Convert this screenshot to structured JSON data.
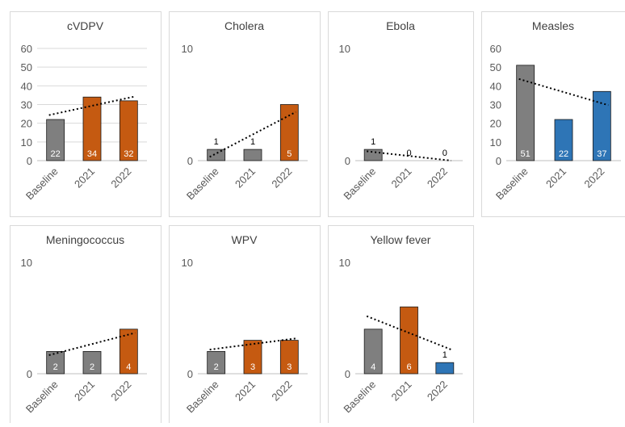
{
  "colors": {
    "baseline": "#7f7f7f",
    "increase": "#c55a11",
    "decrease": "#2e75b6"
  },
  "chart_data": [
    {
      "type": "bar",
      "title": "cVDPV",
      "categories": [
        "Baseline",
        "2021",
        "2022"
      ],
      "values": [
        22,
        34,
        32
      ],
      "bar_colors": [
        "baseline",
        "increase",
        "increase"
      ],
      "ylim": [
        0,
        60
      ],
      "yticks": [
        0,
        10,
        20,
        30,
        40,
        50,
        60
      ],
      "grid": true,
      "trendline": "linear",
      "data_labels": "inside"
    },
    {
      "type": "bar",
      "title": "Cholera",
      "categories": [
        "Baseline",
        "2021",
        "2022"
      ],
      "values": [
        1,
        1,
        5
      ],
      "bar_colors": [
        "baseline",
        "baseline",
        "increase"
      ],
      "ylim": [
        0,
        10
      ],
      "yticks": [
        0,
        10
      ],
      "grid": false,
      "trendline": "linear",
      "data_labels": "mixed"
    },
    {
      "type": "bar",
      "title": "Ebola",
      "categories": [
        "Baseline",
        "2021",
        "2022"
      ],
      "values": [
        1,
        0,
        0
      ],
      "bar_colors": [
        "baseline",
        "baseline",
        "baseline"
      ],
      "ylim": [
        0,
        10
      ],
      "yticks": [
        0,
        10
      ],
      "grid": false,
      "trendline": "linear",
      "data_labels": "outside"
    },
    {
      "type": "bar",
      "title": "Measles",
      "categories": [
        "Baseline",
        "2021",
        "2022"
      ],
      "values": [
        51,
        22,
        37
      ],
      "bar_colors": [
        "baseline",
        "decrease",
        "decrease"
      ],
      "ylim": [
        0,
        60
      ],
      "yticks": [
        0,
        10,
        20,
        30,
        40,
        50,
        60
      ],
      "grid": false,
      "trendline": "linear",
      "data_labels": "inside"
    },
    {
      "type": "bar",
      "title": "Meningococcus",
      "categories": [
        "Baseline",
        "2021",
        "2022"
      ],
      "values": [
        2,
        2,
        4
      ],
      "bar_colors": [
        "baseline",
        "baseline",
        "increase"
      ],
      "ylim": [
        0,
        10
      ],
      "yticks": [
        0,
        10
      ],
      "grid": false,
      "trendline": "linear",
      "data_labels": "inside"
    },
    {
      "type": "bar",
      "title": "WPV",
      "categories": [
        "Baseline",
        "2021",
        "2022"
      ],
      "values": [
        2,
        3,
        3
      ],
      "bar_colors": [
        "baseline",
        "increase",
        "increase"
      ],
      "ylim": [
        0,
        10
      ],
      "yticks": [
        0,
        10
      ],
      "grid": false,
      "trendline": "linear",
      "data_labels": "inside"
    },
    {
      "type": "bar",
      "title": "Yellow fever",
      "categories": [
        "Baseline",
        "2021",
        "2022"
      ],
      "values": [
        4,
        6,
        1
      ],
      "bar_colors": [
        "baseline",
        "increase",
        "decrease"
      ],
      "ylim": [
        0,
        10
      ],
      "yticks": [
        0,
        10
      ],
      "grid": false,
      "trendline": "linear",
      "data_labels": "mixed"
    }
  ]
}
